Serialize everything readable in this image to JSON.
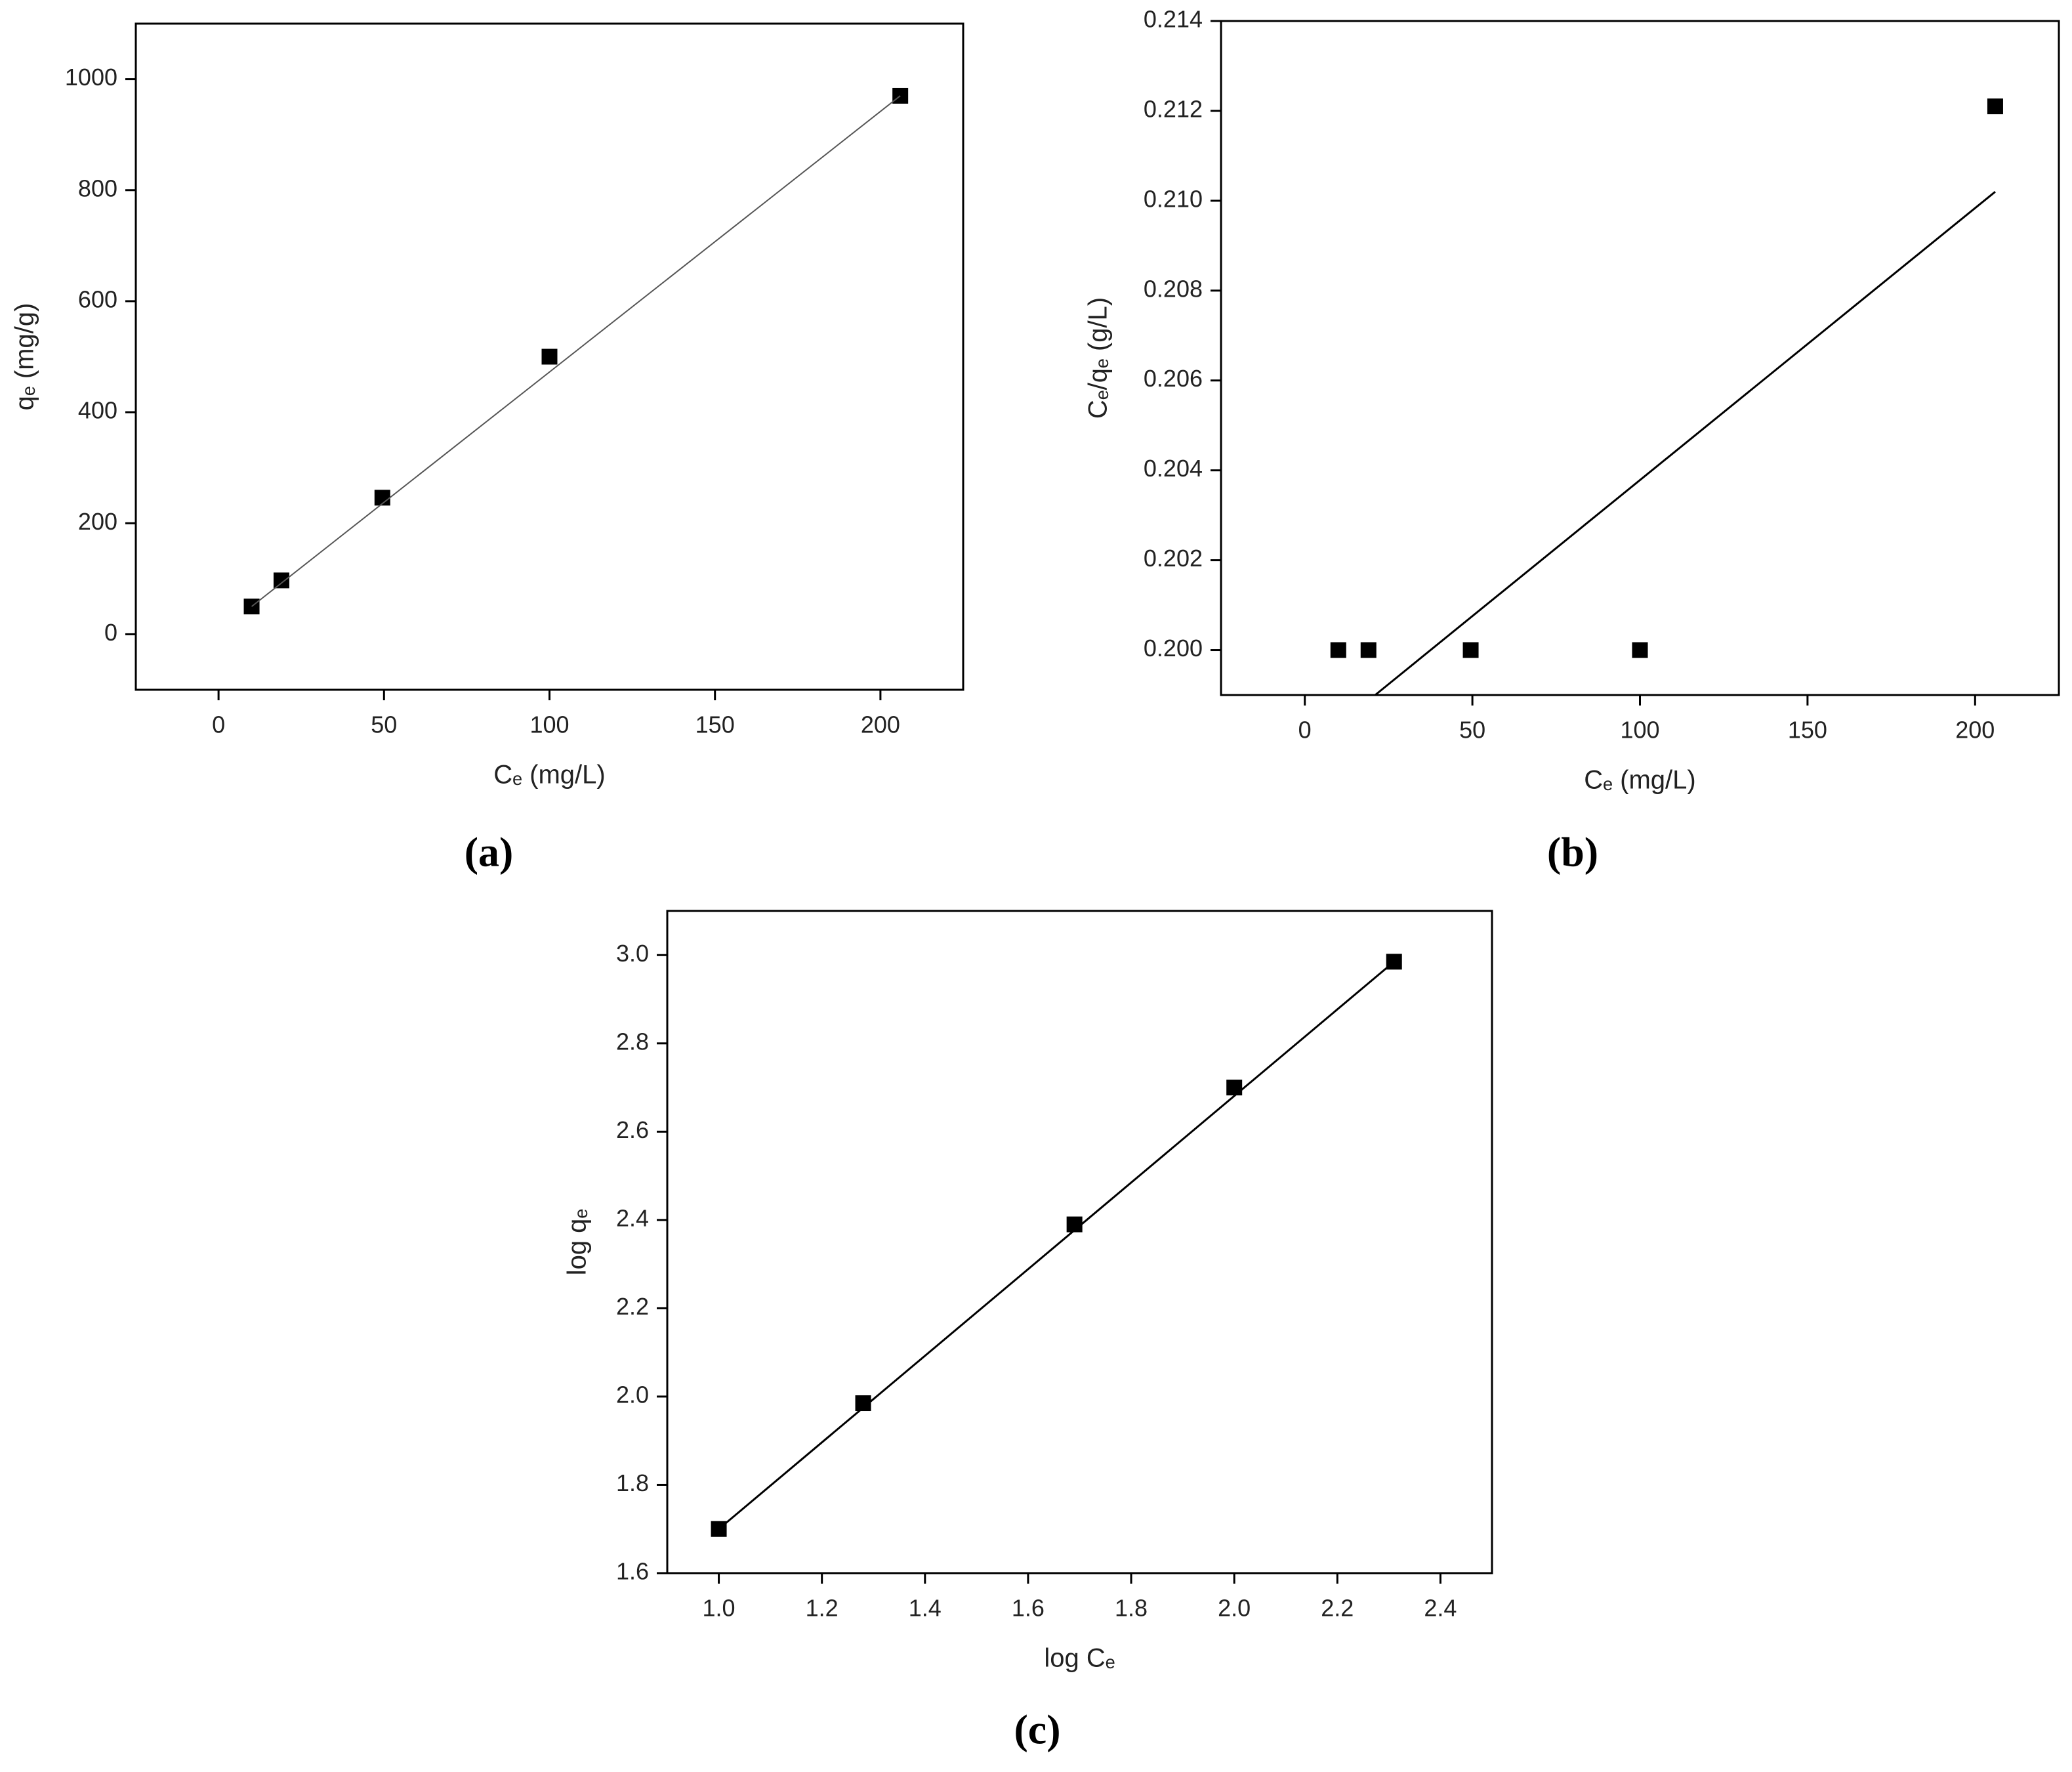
{
  "chart_data": [
    {
      "type": "scatter",
      "caption": "(a)",
      "x_label": "Cₑ (mg/L)",
      "y_label": "qₑ (mg/g)",
      "xlim": [
        -25,
        225
      ],
      "xticks": [
        0,
        50,
        100,
        150,
        200
      ],
      "ylim": [
        -100,
        1100
      ],
      "yticks": [
        0,
        200,
        400,
        600,
        800,
        1000
      ],
      "series": [
        {
          "mode": "markers",
          "marker": "square",
          "color": "#000000",
          "x": [
            10,
            19,
            49.5,
            100,
            206
          ],
          "values": [
            50,
            97,
            246,
            500,
            970
          ]
        },
        {
          "mode": "line",
          "color": "#555555",
          "x": [
            10,
            206
          ],
          "values": [
            50,
            970
          ]
        }
      ]
    },
    {
      "type": "scatter",
      "caption": "(b)",
      "x_label": "Cₑ (mg/L)",
      "y_label": "Cₑ/qₑ (g/L)",
      "xlim": [
        -25,
        225
      ],
      "xticks": [
        0,
        50,
        100,
        150,
        200
      ],
      "ylim": [
        0.199,
        0.214
      ],
      "yticks": [
        {
          "value": 0.2,
          "label": "0.200"
        },
        0.202,
        0.204,
        0.206,
        0.208,
        {
          "value": 0.21,
          "label": "0.210"
        },
        0.212,
        0.214
      ],
      "series": [
        {
          "mode": "markers",
          "marker": "square",
          "color": "#000000",
          "x": [
            10,
            19,
            49.5,
            100,
            206
          ],
          "values": [
            0.2,
            0.2,
            0.2,
            0.2,
            0.2121
          ]
        },
        {
          "mode": "line",
          "color": "#000000",
          "x": [
            21,
            206
          ],
          "values": [
            0.199,
            0.2102
          ]
        }
      ]
    },
    {
      "type": "scatter",
      "caption": "(c)",
      "x_label": "log Cₑ",
      "y_label": "log qₑ",
      "xlim": [
        0.9,
        2.5
      ],
      "xticks": [
        {
          "value": 1,
          "label": "1.0"
        },
        1.2,
        1.4,
        1.6,
        1.8,
        {
          "value": 2,
          "label": "2.0"
        },
        2.2,
        2.4
      ],
      "ylim": [
        1.6,
        3.1
      ],
      "yticks": [
        1.6,
        1.8,
        {
          "value": 2,
          "label": "2.0"
        },
        2.2,
        2.4,
        2.6,
        2.8,
        {
          "value": 3,
          "label": "3.0"
        }
      ],
      "series": [
        {
          "mode": "markers",
          "marker": "square",
          "color": "#000000",
          "x": [
            1.0,
            1.28,
            1.69,
            2.0,
            2.31
          ],
          "values": [
            1.7,
            1.985,
            2.39,
            2.7,
            2.985
          ]
        },
        {
          "mode": "line",
          "color": "#000000",
          "x": [
            1.0,
            2.31
          ],
          "values": [
            1.7,
            2.985
          ]
        }
      ]
    }
  ]
}
